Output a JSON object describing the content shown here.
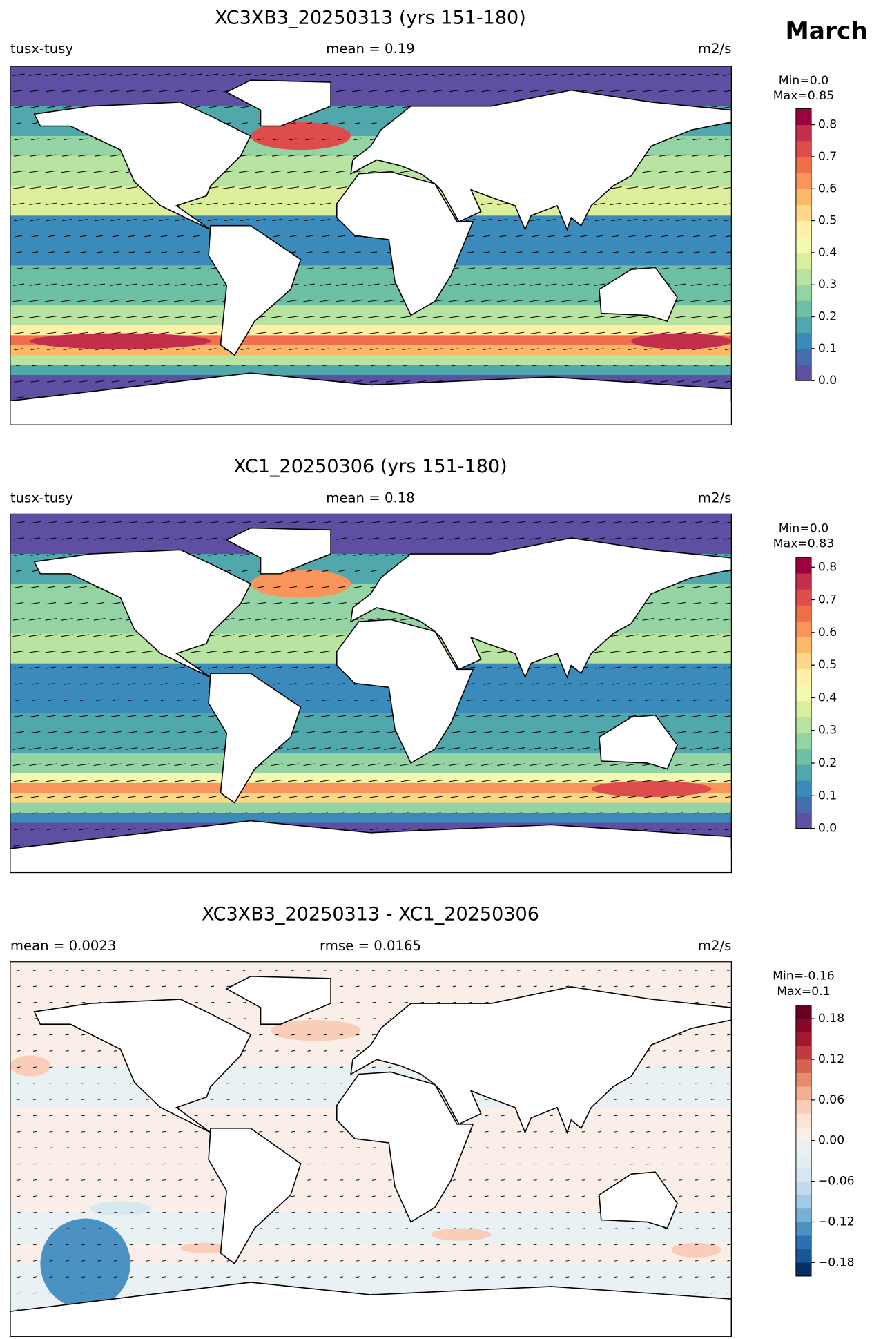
{
  "figure_title": "March",
  "chart_data": [
    {
      "type": "map",
      "title": "XC3XB3_20250313 (yrs 151-180)",
      "left_label": "tusx-tusy",
      "center_label": "mean = 0.19",
      "right_label": "m2/s",
      "colorbar": {
        "min_label": "Min=0.0",
        "max_label": "Max=0.85",
        "ylim": [
          0,
          0.85
        ],
        "yticks": [
          {
            "value": 0,
            "label": "0.0"
          },
          0.1,
          0.2,
          0.3,
          0.4,
          0.5,
          0.6,
          0.7,
          0.8
        ],
        "colors": [
          "#5e4fa2",
          "#466cb0",
          "#3a8bbb",
          "#50a8ad",
          "#6dc0a4",
          "#94d3a4",
          "#b9e3a1",
          "#dcf09b",
          "#f3f9ae",
          "#fef1a6",
          "#fed887",
          "#fdb869",
          "#f9945a",
          "#f06f4a",
          "#de4d4b",
          "#c32e4b",
          "#9e0142"
        ]
      }
    },
    {
      "type": "map",
      "title": "XC1_20250306 (yrs 151-180)",
      "left_label": "tusx-tusy",
      "center_label": "mean = 0.18",
      "right_label": "m2/s",
      "colorbar": {
        "min_label": "Min=0.0",
        "max_label": "Max=0.83",
        "ylim": [
          0,
          0.83
        ],
        "yticks": [
          {
            "value": 0,
            "label": "0.0"
          },
          0.1,
          0.2,
          0.3,
          0.4,
          0.5,
          0.6,
          0.7,
          0.8
        ],
        "colors": [
          "#5e4fa2",
          "#466cb0",
          "#3a8bbb",
          "#50a8ad",
          "#6dc0a4",
          "#94d3a4",
          "#b9e3a1",
          "#dcf09b",
          "#f3f9ae",
          "#fef1a6",
          "#fed887",
          "#fdb869",
          "#f9945a",
          "#f06f4a",
          "#de4d4b",
          "#c32e4b",
          "#9e0142"
        ]
      }
    },
    {
      "type": "diff-map",
      "title": "XC3XB3_20250313 - XC1_20250306",
      "left_label": "mean = 0.0023",
      "center_label": "rmse = 0.0165",
      "right_label": "m2/s",
      "colorbar": {
        "min_label": "Min=-0.16",
        "max_label": "Max=0.1",
        "ylim": [
          -0.2,
          0.2
        ],
        "yticks": [
          {
            "value": -0.18,
            "label": "−0.18"
          },
          {
            "value": -0.12,
            "label": "−0.12"
          },
          {
            "value": -0.06,
            "label": "−0.06"
          },
          {
            "value": 0,
            "label": "0.00"
          },
          0.06,
          0.12,
          0.18
        ],
        "colors": [
          "#053061",
          "#1a5597",
          "#2b71b0",
          "#4a92c4",
          "#76b1d4",
          "#a1cbe2",
          "#c3dcec",
          "#d8e8f1",
          "#e3eef3",
          "#e9f1f5",
          "#faeee8",
          "#fbe3d6",
          "#f9cdb8",
          "#f4ae91",
          "#e78a6e",
          "#d4644f",
          "#c13b3c",
          "#a5172e",
          "#87062a",
          "#67001f"
        ]
      }
    }
  ]
}
